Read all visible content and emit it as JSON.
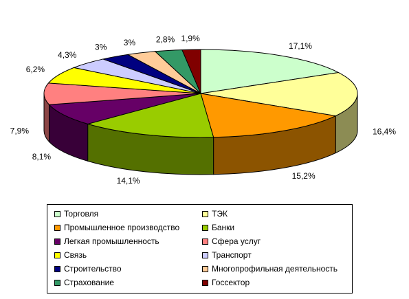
{
  "chart_data": {
    "type": "pie",
    "title": "",
    "categories": [
      "Торговля",
      "ТЭК",
      "Промышленное производство",
      "Банки",
      "Легкая промышленность",
      "Сфера услуг",
      "Связь",
      "Транспорт",
      "Строительство",
      "Многопрофильная деятельность",
      "Страхование",
      "Госсектор"
    ],
    "values": [
      17.1,
      16.4,
      15.2,
      14.1,
      8.1,
      7.9,
      6.2,
      4.3,
      3,
      3,
      2.8,
      1.9
    ],
    "labels": [
      "17,1%",
      "16,4%",
      "15,2%",
      "14,1%",
      "8,1%",
      "7,9%",
      "6,2%",
      "4,3%",
      "3%",
      "3%",
      "2,8%",
      "1,9%"
    ],
    "colors": [
      "#ccffcc",
      "#ffff99",
      "#ff9900",
      "#99cc00",
      "#660066",
      "#ff8080",
      "#ffff00",
      "#ccccff",
      "#000080",
      "#ffcc99",
      "#339966",
      "#800000"
    ],
    "legend_position": "bottom"
  }
}
